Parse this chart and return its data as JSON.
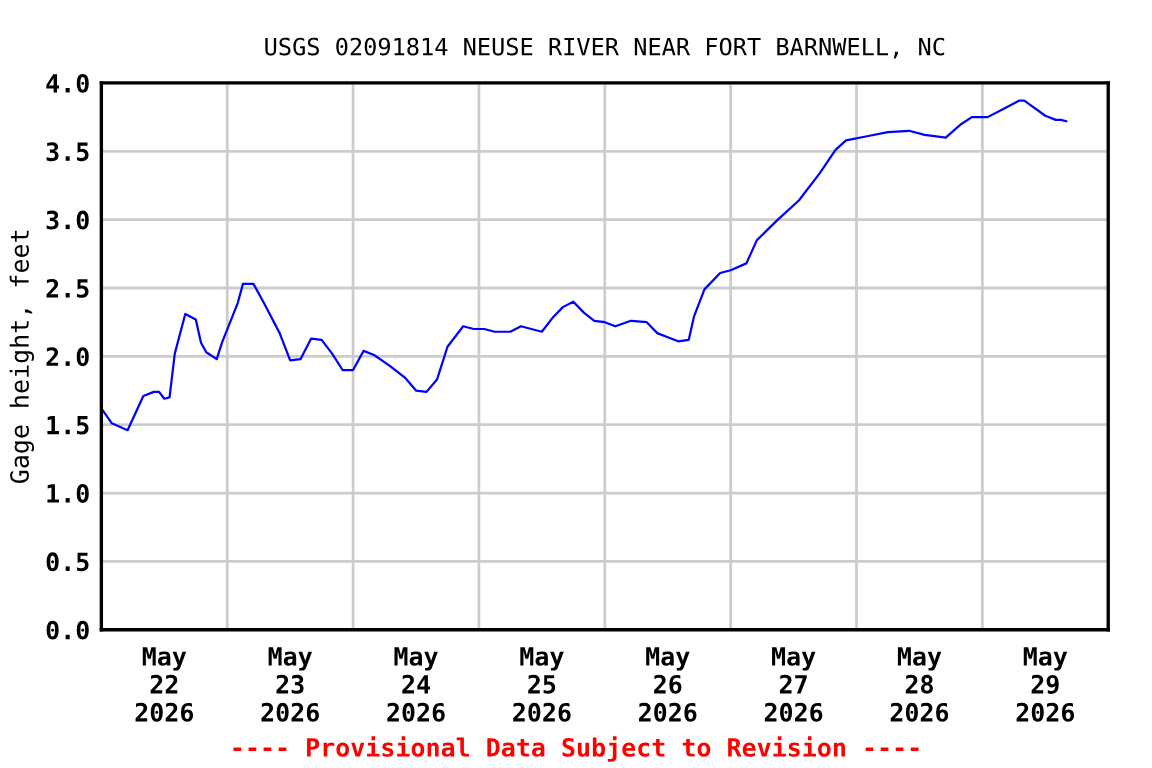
{
  "chart_data": {
    "type": "line",
    "title": "USGS 02091814 NEUSE RIVER NEAR FORT BARNWELL, NC",
    "ylabel": "Gage height, feet",
    "annotations": [
      "---- Provisional Data Subject to Revision ----"
    ],
    "x": [
      "2026-05-22T00:00",
      "2026-05-22T02:00",
      "2026-05-22T05:00",
      "2026-05-22T08:00",
      "2026-05-22T10:00",
      "2026-05-22T11:00",
      "2026-05-22T12:00",
      "2026-05-22T13:00",
      "2026-05-22T14:00",
      "2026-05-22T16:00",
      "2026-05-22T18:00",
      "2026-05-22T19:00",
      "2026-05-22T20:00",
      "2026-05-22T22:00",
      "2026-05-22T23:00",
      "2026-05-23T02:00",
      "2026-05-23T03:00",
      "2026-05-23T05:00",
      "2026-05-23T07:00",
      "2026-05-23T10:00",
      "2026-05-23T12:00",
      "2026-05-23T14:00",
      "2026-05-23T16:00",
      "2026-05-23T18:00",
      "2026-05-23T20:00",
      "2026-05-23T22:00",
      "2026-05-24T00:00",
      "2026-05-24T02:00",
      "2026-05-24T04:00",
      "2026-05-24T07:00",
      "2026-05-24T10:00",
      "2026-05-24T12:00",
      "2026-05-24T14:00",
      "2026-05-24T16:00",
      "2026-05-24T18:00",
      "2026-05-24T21:00",
      "2026-05-24T23:00",
      "2026-05-25T01:00",
      "2026-05-25T03:00",
      "2026-05-25T06:00",
      "2026-05-25T08:00",
      "2026-05-25T10:00",
      "2026-05-25T12:00",
      "2026-05-25T14:00",
      "2026-05-25T16:00",
      "2026-05-25T18:00",
      "2026-05-25T20:00",
      "2026-05-25T22:00",
      "2026-05-26T00:00",
      "2026-05-26T02:00",
      "2026-05-26T05:00",
      "2026-05-26T08:00",
      "2026-05-26T10:00",
      "2026-05-26T12:00",
      "2026-05-26T14:00",
      "2026-05-26T16:00",
      "2026-05-26T17:00",
      "2026-05-26T19:00",
      "2026-05-26T22:00",
      "2026-05-27T00:00",
      "2026-05-27T03:00",
      "2026-05-27T05:00",
      "2026-05-27T09:00",
      "2026-05-27T13:00",
      "2026-05-27T17:00",
      "2026-05-27T20:00",
      "2026-05-27T22:00",
      "2026-05-28T02:00",
      "2026-05-28T06:00",
      "2026-05-28T10:00",
      "2026-05-28T13:00",
      "2026-05-28T17:00",
      "2026-05-28T20:00",
      "2026-05-28T22:00",
      "2026-05-29T01:00",
      "2026-05-29T04:00",
      "2026-05-29T07:00",
      "2026-05-29T08:00",
      "2026-05-29T12:00",
      "2026-05-29T14:00",
      "2026-05-29T15:00",
      "2026-05-29T16:00"
    ],
    "series": [
      {
        "color": "#0000ff",
        "values": [
          1.62,
          1.51,
          1.46,
          1.71,
          1.74,
          1.74,
          1.69,
          1.7,
          2.02,
          2.31,
          2.27,
          2.1,
          2.03,
          1.98,
          2.1,
          2.39,
          2.53,
          2.53,
          2.39,
          2.17,
          1.97,
          1.98,
          2.13,
          2.12,
          2.02,
          1.9,
          1.9,
          2.04,
          2.01,
          1.93,
          1.84,
          1.75,
          1.74,
          1.83,
          2.07,
          2.22,
          2.2,
          2.2,
          2.18,
          2.18,
          2.22,
          2.2,
          2.18,
          2.28,
          2.36,
          2.4,
          2.32,
          2.26,
          2.25,
          2.22,
          2.26,
          2.25,
          2.17,
          2.14,
          2.11,
          2.12,
          2.29,
          2.49,
          2.61,
          2.63,
          2.68,
          2.85,
          3.0,
          3.14,
          3.34,
          3.51,
          3.58,
          3.61,
          3.64,
          3.65,
          3.62,
          3.6,
          3.7,
          3.75,
          3.75,
          3.81,
          3.87,
          3.87,
          3.76,
          3.73,
          3.73,
          3.72
        ]
      }
    ],
    "xlim": [
      "2026-05-22T00:00",
      "2026-05-30T00:00"
    ],
    "xticks": [
      {
        "value": "2026-05-22T00:00",
        "label": null
      },
      {
        "value": "2026-05-22T12:00",
        "label": "May\n22\n2026"
      },
      {
        "value": "2026-05-23T00:00",
        "label": null
      },
      {
        "value": "2026-05-23T12:00",
        "label": "May\n23\n2026"
      },
      {
        "value": "2026-05-24T00:00",
        "label": null
      },
      {
        "value": "2026-05-24T12:00",
        "label": "May\n24\n2026"
      },
      {
        "value": "2026-05-25T00:00",
        "label": null
      },
      {
        "value": "2026-05-25T12:00",
        "label": "May\n25\n2026"
      },
      {
        "value": "2026-05-26T00:00",
        "label": null
      },
      {
        "value": "2026-05-26T12:00",
        "label": "May\n26\n2026"
      },
      {
        "value": "2026-05-27T00:00",
        "label": null
      },
      {
        "value": "2026-05-27T12:00",
        "label": "May\n27\n2026"
      },
      {
        "value": "2026-05-28T00:00",
        "label": null
      },
      {
        "value": "2026-05-28T12:00",
        "label": "May\n28\n2026"
      },
      {
        "value": "2026-05-29T00:00",
        "label": null
      },
      {
        "value": "2026-05-29T12:00",
        "label": "May\n29\n2026"
      }
    ],
    "ylim": [
      0,
      4
    ],
    "yticks": [
      {
        "value": 0,
        "label": "0.0"
      },
      0.5,
      {
        "value": 1,
        "label": "1.0"
      },
      1.5,
      {
        "value": 2,
        "label": "2.0"
      },
      2.5,
      {
        "value": 3,
        "label": "3.0"
      },
      3.5,
      {
        "value": 4,
        "label": "4.0"
      }
    ],
    "grid": true,
    "legend": false,
    "marker": "none",
    "line_style": "solid"
  }
}
